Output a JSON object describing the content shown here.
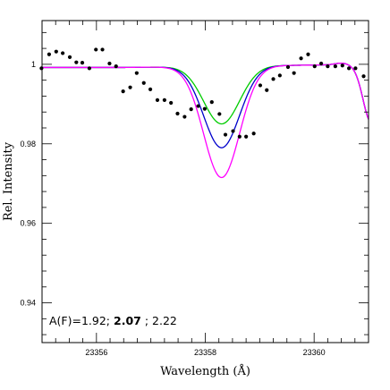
{
  "chart_data": {
    "type": "scatter",
    "title": "",
    "xlabel": "Wavelength (Å)",
    "ylabel": "Rel. Intensity",
    "xlim": [
      23355.0,
      23361.0
    ],
    "ylim": [
      0.93,
      1.011
    ],
    "x_ticks": [
      {
        "value": 23356,
        "label": "23356"
      },
      {
        "value": 23358,
        "label": "23358"
      },
      {
        "value": 23360,
        "label": "23360"
      }
    ],
    "y_ticks": [
      {
        "value": 0.94,
        "label": "0.94"
      },
      {
        "value": 0.96,
        "label": "0.96"
      },
      {
        "value": 0.98,
        "label": "0.98"
      },
      {
        "value": 1.0,
        "label": "1"
      }
    ],
    "x_minor_step": 0.25,
    "y_minor_step": 0.004,
    "grid": false,
    "annotation": {
      "parts": [
        {
          "text": "A(F)=1.92; ",
          "bold": false
        },
        {
          "text": "2.07",
          "bold": true
        },
        {
          "text": "; 2.22",
          "bold": false
        }
      ]
    },
    "series": [
      {
        "kind": "points",
        "color": "#000000",
        "x": [
          23354.99,
          23355.13,
          23355.26,
          23355.38,
          23355.51,
          23355.63,
          23355.74,
          23355.87,
          23355.99,
          23356.11,
          23356.24,
          23356.36,
          23356.49,
          23356.62,
          23356.74,
          23356.87,
          23356.99,
          23357.12,
          23357.25,
          23357.37,
          23357.49,
          23357.62,
          23357.74,
          23357.87,
          23357.99,
          23358.12,
          23358.26,
          23358.37,
          23358.51,
          23358.63,
          23358.75,
          23358.89,
          23359.01,
          23359.13,
          23359.25,
          23359.37,
          23359.52,
          23359.63,
          23359.76,
          23359.89,
          23360.01,
          23360.13,
          23360.25,
          23360.39,
          23360.52,
          23360.64,
          23360.76,
          23360.91
        ],
        "y": [
          0.999,
          1.0025,
          1.0032,
          1.0028,
          1.0018,
          1.0005,
          1.0004,
          0.999,
          1.0037,
          1.0037,
          1.0002,
          0.9995,
          0.9932,
          0.9942,
          0.9978,
          0.9953,
          0.9937,
          0.991,
          0.991,
          0.9903,
          0.9876,
          0.9868,
          0.9887,
          0.9895,
          0.9888,
          0.9905,
          0.9875,
          0.9823,
          0.9832,
          0.9818,
          0.9818,
          0.9826,
          0.9947,
          0.9935,
          0.9963,
          0.9972,
          0.9993,
          0.9978,
          1.0015,
          1.0025,
          0.9995,
          1.0002,
          0.9995,
          0.9995,
          0.9997,
          0.999,
          0.999,
          0.997
        ]
      },
      {
        "kind": "line",
        "color": "#00cc00",
        "depth": 0.0145
      },
      {
        "kind": "line",
        "color": "#0000cc",
        "depth": 0.0205
      },
      {
        "kind": "line",
        "color": "#ff00ff",
        "depth": 0.028
      }
    ]
  }
}
